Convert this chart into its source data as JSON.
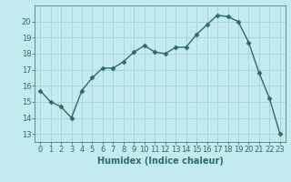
{
  "x": [
    0,
    1,
    2,
    3,
    4,
    5,
    6,
    7,
    8,
    9,
    10,
    11,
    12,
    13,
    14,
    15,
    16,
    17,
    18,
    19,
    20,
    21,
    22,
    23
  ],
  "y": [
    15.7,
    15.0,
    14.7,
    14.0,
    15.7,
    16.5,
    17.1,
    17.1,
    17.5,
    18.1,
    18.5,
    18.1,
    18.0,
    18.4,
    18.4,
    19.2,
    19.8,
    20.4,
    20.3,
    20.0,
    18.7,
    16.8,
    15.2,
    13.0
  ],
  "line_color": "#2d6b6b",
  "marker": "D",
  "marker_size": 2.5,
  "bg_color": "#c2ebeb",
  "grid_color": "#9ecece",
  "xlabel": "Humidex (Indice chaleur)",
  "ylim": [
    12.5,
    21.0
  ],
  "xlim": [
    -0.5,
    23.5
  ],
  "yticks": [
    13,
    14,
    15,
    16,
    17,
    18,
    19,
    20
  ],
  "xticks": [
    0,
    1,
    2,
    3,
    4,
    5,
    6,
    7,
    8,
    9,
    10,
    11,
    12,
    13,
    14,
    15,
    16,
    17,
    18,
    19,
    20,
    21,
    22,
    23
  ],
  "tick_color": "#2d6b6b",
  "xlabel_fontsize": 7,
  "tick_fontsize": 6,
  "linewidth": 1.0
}
